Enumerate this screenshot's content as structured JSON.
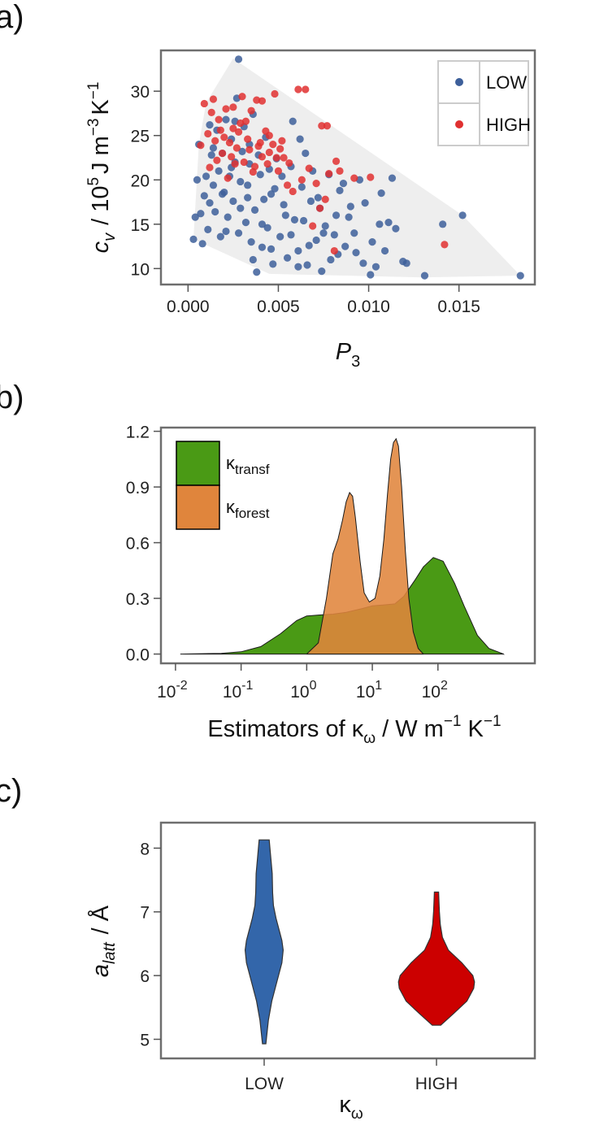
{
  "panel_labels": {
    "a": "a)",
    "b": "b)",
    "c": "c)"
  },
  "chart_data": [
    {
      "panel": "a",
      "type": "scatter",
      "xlabel": {
        "main": "P",
        "sub": "3"
      },
      "ylabel": {
        "var": "c",
        "sub": "v",
        "unit_pre": "/ 10",
        "unit_sup1": "5",
        "unit_mid": "J m",
        "unit_sup2": "−3",
        "unit_k": "K",
        "unit_sup3": "−1"
      },
      "xlim": [
        -0.0015,
        0.0192
      ],
      "ylim": [
        8.2,
        34.6
      ],
      "x_ticks": [
        0.0,
        0.005,
        0.01,
        0.015
      ],
      "x_tick_labels": [
        "0.000",
        "0.005",
        "0.010",
        "0.015"
      ],
      "y_ticks": [
        10,
        15,
        20,
        25,
        30
      ],
      "y_tick_labels": [
        "10",
        "15",
        "20",
        "25",
        "30"
      ],
      "hull": [
        [
          0.0025,
          33.7
        ],
        [
          0.0152,
          16.0
        ],
        [
          0.0184,
          9.2
        ],
        [
          0.013,
          9.0
        ],
        [
          0.0045,
          9.4
        ],
        [
          0.0003,
          13.3
        ],
        [
          0.0006,
          24.0
        ],
        [
          0.001,
          28.7
        ]
      ],
      "legend": {
        "position": "top-right",
        "items": [
          {
            "label": "LOW",
            "color": "#3d5f9a"
          },
          {
            "label": "HIGH",
            "color": "#e03030"
          }
        ]
      },
      "series": [
        {
          "name": "LOW",
          "color": "#3d5f9a",
          "points": [
            [
              0.0028,
              33.6
            ],
            [
              0.0184,
              9.2
            ],
            [
              0.0152,
              16.0
            ],
            [
              0.0141,
              15.0
            ],
            [
              0.0131,
              9.2
            ],
            [
              0.0119,
              10.8
            ],
            [
              0.0115,
              14.5
            ],
            [
              0.0111,
              15.2
            ],
            [
              0.0107,
              18.5
            ],
            [
              0.0106,
              15.0
            ],
            [
              0.0104,
              10.2
            ],
            [
              0.0101,
              9.3
            ],
            [
              0.0097,
              10.6
            ],
            [
              0.0095,
              20.0
            ],
            [
              0.0092,
              14.0
            ],
            [
              0.009,
              17.0
            ],
            [
              0.0087,
              12.5
            ],
            [
              0.0084,
              18.8
            ],
            [
              0.0082,
              16.0
            ],
            [
              0.0079,
              11.0
            ],
            [
              0.0076,
              14.8
            ],
            [
              0.0074,
              9.7
            ],
            [
              0.0071,
              13.2
            ],
            [
              0.0068,
              17.6
            ],
            [
              0.0066,
              10.4
            ],
            [
              0.0063,
              19.2
            ],
            [
              0.0061,
              12.0
            ],
            [
              0.0059,
              15.5
            ],
            [
              0.0057,
              21.5
            ],
            [
              0.0055,
              11.2
            ],
            [
              0.0053,
              17.2
            ],
            [
              0.0051,
              13.6
            ],
            [
              0.0049,
              22.4
            ],
            [
              0.0047,
              10.5
            ],
            [
              0.0046,
              18.4
            ],
            [
              0.0044,
              14.6
            ],
            [
              0.0043,
              24.8
            ],
            [
              0.0041,
              12.4
            ],
            [
              0.004,
              20.6
            ],
            [
              0.0038,
              9.6
            ],
            [
              0.0037,
              16.6
            ],
            [
              0.0036,
              27.4
            ],
            [
              0.0035,
              13.0
            ],
            [
              0.0034,
              21.8
            ],
            [
              0.0033,
              18.0
            ],
            [
              0.0032,
              15.2
            ],
            [
              0.0031,
              26.0
            ],
            [
              0.003,
              23.2
            ],
            [
              0.0029,
              19.8
            ],
            [
              0.0028,
              14.0
            ],
            [
              0.0027,
              29.2
            ],
            [
              0.0026,
              22.0
            ],
            [
              0.0025,
              17.6
            ],
            [
              0.0024,
              24.6
            ],
            [
              0.0023,
              20.4
            ],
            [
              0.0022,
              15.8
            ],
            [
              0.0021,
              26.8
            ],
            [
              0.002,
              18.6
            ],
            [
              0.0019,
              23.0
            ],
            [
              0.0018,
              13.6
            ],
            [
              0.0017,
              21.0
            ],
            [
              0.0016,
              25.6
            ],
            [
              0.0015,
              16.4
            ],
            [
              0.0014,
              19.4
            ],
            [
              0.0013,
              22.8
            ],
            [
              0.0012,
              26.2
            ],
            [
              0.0011,
              14.4
            ],
            [
              0.001,
              20.4
            ],
            [
              0.0009,
              18.2
            ],
            [
              0.0008,
              12.8
            ],
            [
              0.0007,
              16.2
            ],
            [
              0.0006,
              24.0
            ],
            [
              0.0005,
              20.0
            ],
            [
              0.0004,
              15.8
            ],
            [
              0.0003,
              13.3
            ],
            [
              0.0062,
              24.6
            ],
            [
              0.0058,
              26.6
            ],
            [
              0.0065,
              23.0
            ],
            [
              0.0069,
              21.0
            ],
            [
              0.0072,
              18.0
            ],
            [
              0.0078,
              20.6
            ],
            [
              0.0081,
              13.8
            ],
            [
              0.0086,
              19.6
            ],
            [
              0.0089,
              15.8
            ],
            [
              0.0093,
              11.8
            ],
            [
              0.0098,
              17.4
            ],
            [
              0.0102,
              13.0
            ],
            [
              0.0109,
              12.0
            ],
            [
              0.0113,
              20.2
            ],
            [
              0.0121,
              10.6
            ],
            [
              0.0054,
              16.0
            ],
            [
              0.0048,
              19.0
            ],
            [
              0.0042,
              17.8
            ],
            [
              0.0039,
              22.8
            ],
            [
              0.0034,
              24.0
            ],
            [
              0.0029,
              16.8
            ],
            [
              0.0024,
              21.4
            ],
            [
              0.0019,
              18.4
            ],
            [
              0.0014,
              23.6
            ],
            [
              0.0057,
              13.8
            ],
            [
              0.0064,
              15.4
            ],
            [
              0.0073,
              16.8
            ],
            [
              0.0052,
              20.4
            ],
            [
              0.0045,
              21.2
            ],
            [
              0.0033,
              19.4
            ],
            [
              0.0026,
              26.6
            ],
            [
              0.0012,
              17.4
            ],
            [
              0.0021,
              14.2
            ],
            [
              0.0061,
              10.2
            ],
            [
              0.0067,
              12.6
            ],
            [
              0.0075,
              14.0
            ],
            [
              0.0083,
              11.6
            ],
            [
              0.0046,
              12.2
            ],
            [
              0.0041,
              15.0
            ],
            [
              0.0036,
              11.0
            ]
          ]
        },
        {
          "name": "HIGH",
          "color": "#e03030",
          "points": [
            [
              0.0142,
              12.7
            ],
            [
              0.0101,
              20.3
            ],
            [
              0.0092,
              20.2
            ],
            [
              0.0084,
              21.0
            ],
            [
              0.0082,
              22.1
            ],
            [
              0.0077,
              26.1
            ],
            [
              0.0074,
              26.1
            ],
            [
              0.0078,
              20.7
            ],
            [
              0.0076,
              17.8
            ],
            [
              0.0071,
              19.6
            ],
            [
              0.0067,
              21.3
            ],
            [
              0.0065,
              30.2
            ],
            [
              0.0061,
              30.2
            ],
            [
              0.0058,
              18.7
            ],
            [
              0.0056,
              21.9
            ],
            [
              0.0053,
              22.5
            ],
            [
              0.0051,
              23.5
            ],
            [
              0.0049,
              22.5
            ],
            [
              0.0047,
              24.0
            ],
            [
              0.0045,
              23.1
            ],
            [
              0.0043,
              25.5
            ],
            [
              0.0041,
              22.6
            ],
            [
              0.0039,
              23.8
            ],
            [
              0.0037,
              21.5
            ],
            [
              0.0035,
              27.8
            ],
            [
              0.0033,
              24.6
            ],
            [
              0.0031,
              22.0
            ],
            [
              0.0029,
              26.4
            ],
            [
              0.0027,
              23.6
            ],
            [
              0.0025,
              25.8
            ],
            [
              0.0023,
              24.2
            ],
            [
              0.0021,
              28.0
            ],
            [
              0.0019,
              23.0
            ],
            [
              0.0017,
              26.8
            ],
            [
              0.0015,
              24.4
            ],
            [
              0.0013,
              27.6
            ],
            [
              0.0011,
              25.2
            ],
            [
              0.0009,
              28.6
            ],
            [
              0.0007,
              23.9
            ],
            [
              0.0048,
              29.7
            ],
            [
              0.0041,
              28.9
            ],
            [
              0.0038,
              29.0
            ],
            [
              0.0045,
              25.0
            ],
            [
              0.0036,
              20.9
            ],
            [
              0.0032,
              26.6
            ],
            [
              0.0028,
              25.4
            ],
            [
              0.0024,
              22.6
            ],
            [
              0.002,
              24.8
            ],
            [
              0.0016,
              22.2
            ],
            [
              0.0012,
              21.4
            ],
            [
              0.005,
              21.0
            ],
            [
              0.0055,
              19.4
            ],
            [
              0.0063,
              20.0
            ],
            [
              0.0069,
              14.8
            ],
            [
              0.0073,
              16.8
            ],
            [
              0.0081,
              12.0
            ],
            [
              0.0026,
              21.8
            ],
            [
              0.0022,
              20.2
            ],
            [
              0.0018,
              25.6
            ],
            [
              0.0034,
              23.4
            ],
            [
              0.004,
              24.2
            ],
            [
              0.0044,
              21.8
            ],
            [
              0.0052,
              24.4
            ],
            [
              0.003,
              29.4
            ],
            [
              0.0014,
              29.1
            ],
            [
              0.0025,
              28.2
            ]
          ]
        }
      ]
    },
    {
      "panel": "b",
      "type": "area",
      "title": "",
      "xlabel": {
        "pre": "Estimators of κ",
        "sub": "ω",
        "post": " / W m",
        "sup1": "−1",
        "k": " K",
        "sup2": "−1"
      },
      "x_scale": "log",
      "xlim": [
        0.006,
        3000
      ],
      "ylim": [
        -0.05,
        1.22
      ],
      "x_ticks": [
        0.01,
        0.1,
        1,
        10,
        100
      ],
      "x_tick_labels": [
        {
          "base": "10",
          "exp": "-2"
        },
        {
          "base": "10",
          "exp": "-1"
        },
        {
          "base": "10",
          "exp": "0"
        },
        {
          "base": "10",
          "exp": "1"
        },
        {
          "base": "10",
          "exp": "2"
        }
      ],
      "y_ticks": [
        0.0,
        0.3,
        0.6,
        0.9,
        1.2
      ],
      "y_tick_labels": [
        "0.0",
        "0.3",
        "0.6",
        "0.9",
        "1.2"
      ],
      "legend": {
        "position": "top-left",
        "items": [
          {
            "label": "κ",
            "sub": "transf",
            "color": "#4a9a15"
          },
          {
            "label": "κ",
            "sub": "forest",
            "color": "#e0853c"
          }
        ]
      },
      "series": [
        {
          "name": "κtransf",
          "color": "#4a9a15",
          "x": [
            0.012,
            0.05,
            0.1,
            0.2,
            0.4,
            0.7,
            1.0,
            1.5,
            2.5,
            4,
            7,
            10,
            15,
            22,
            30,
            45,
            60,
            85,
            120,
            180,
            250,
            400,
            600,
            1000
          ],
          "values": [
            0.0,
            0.004,
            0.012,
            0.04,
            0.11,
            0.18,
            0.205,
            0.21,
            0.215,
            0.225,
            0.245,
            0.26,
            0.265,
            0.27,
            0.31,
            0.4,
            0.47,
            0.52,
            0.5,
            0.38,
            0.26,
            0.1,
            0.03,
            0.0
          ]
        },
        {
          "name": "κforest",
          "color": "#e0853c",
          "x": [
            1.0,
            1.5,
            2.0,
            2.5,
            3.0,
            3.5,
            4.0,
            4.5,
            5.0,
            5.5,
            6.5,
            7.5,
            9,
            11,
            13,
            15,
            17,
            19,
            21,
            23,
            25,
            28,
            32,
            36,
            42,
            50,
            60
          ],
          "values": [
            0.0,
            0.06,
            0.3,
            0.54,
            0.62,
            0.72,
            0.82,
            0.87,
            0.85,
            0.74,
            0.5,
            0.33,
            0.28,
            0.3,
            0.42,
            0.62,
            0.86,
            1.05,
            1.14,
            1.16,
            1.12,
            0.9,
            0.55,
            0.3,
            0.12,
            0.03,
            0.0
          ]
        }
      ]
    },
    {
      "panel": "c",
      "type": "violin",
      "categories": [
        "LOW",
        "HIGH"
      ],
      "xlabel": {
        "pre": "κ",
        "sub": "ω"
      },
      "ylabel": {
        "var": "a",
        "sub": "latt",
        "unit": "/ Å"
      },
      "ylim": [
        4.7,
        8.4
      ],
      "y_ticks": [
        5,
        6,
        7,
        8
      ],
      "y_tick_labels": [
        "5",
        "6",
        "7",
        "8"
      ],
      "series": [
        {
          "name": "LOW",
          "color": "#3366aa",
          "y": [
            4.93,
            5.05,
            5.3,
            5.6,
            5.9,
            6.2,
            6.4,
            6.55,
            6.7,
            6.9,
            7.1,
            7.3,
            7.6,
            7.9,
            8.13
          ],
          "half_width": [
            0.04,
            0.06,
            0.1,
            0.18,
            0.3,
            0.42,
            0.45,
            0.42,
            0.36,
            0.28,
            0.22,
            0.2,
            0.19,
            0.15,
            0.12
          ]
        },
        {
          "name": "HIGH",
          "color": "#cc0000",
          "y": [
            5.22,
            5.4,
            5.6,
            5.8,
            5.9,
            6.0,
            6.2,
            6.4,
            6.6,
            6.8,
            7.0,
            7.15,
            7.31
          ],
          "half_width": [
            0.1,
            0.4,
            0.72,
            0.88,
            0.9,
            0.86,
            0.6,
            0.28,
            0.14,
            0.09,
            0.07,
            0.06,
            0.05
          ]
        }
      ]
    }
  ]
}
